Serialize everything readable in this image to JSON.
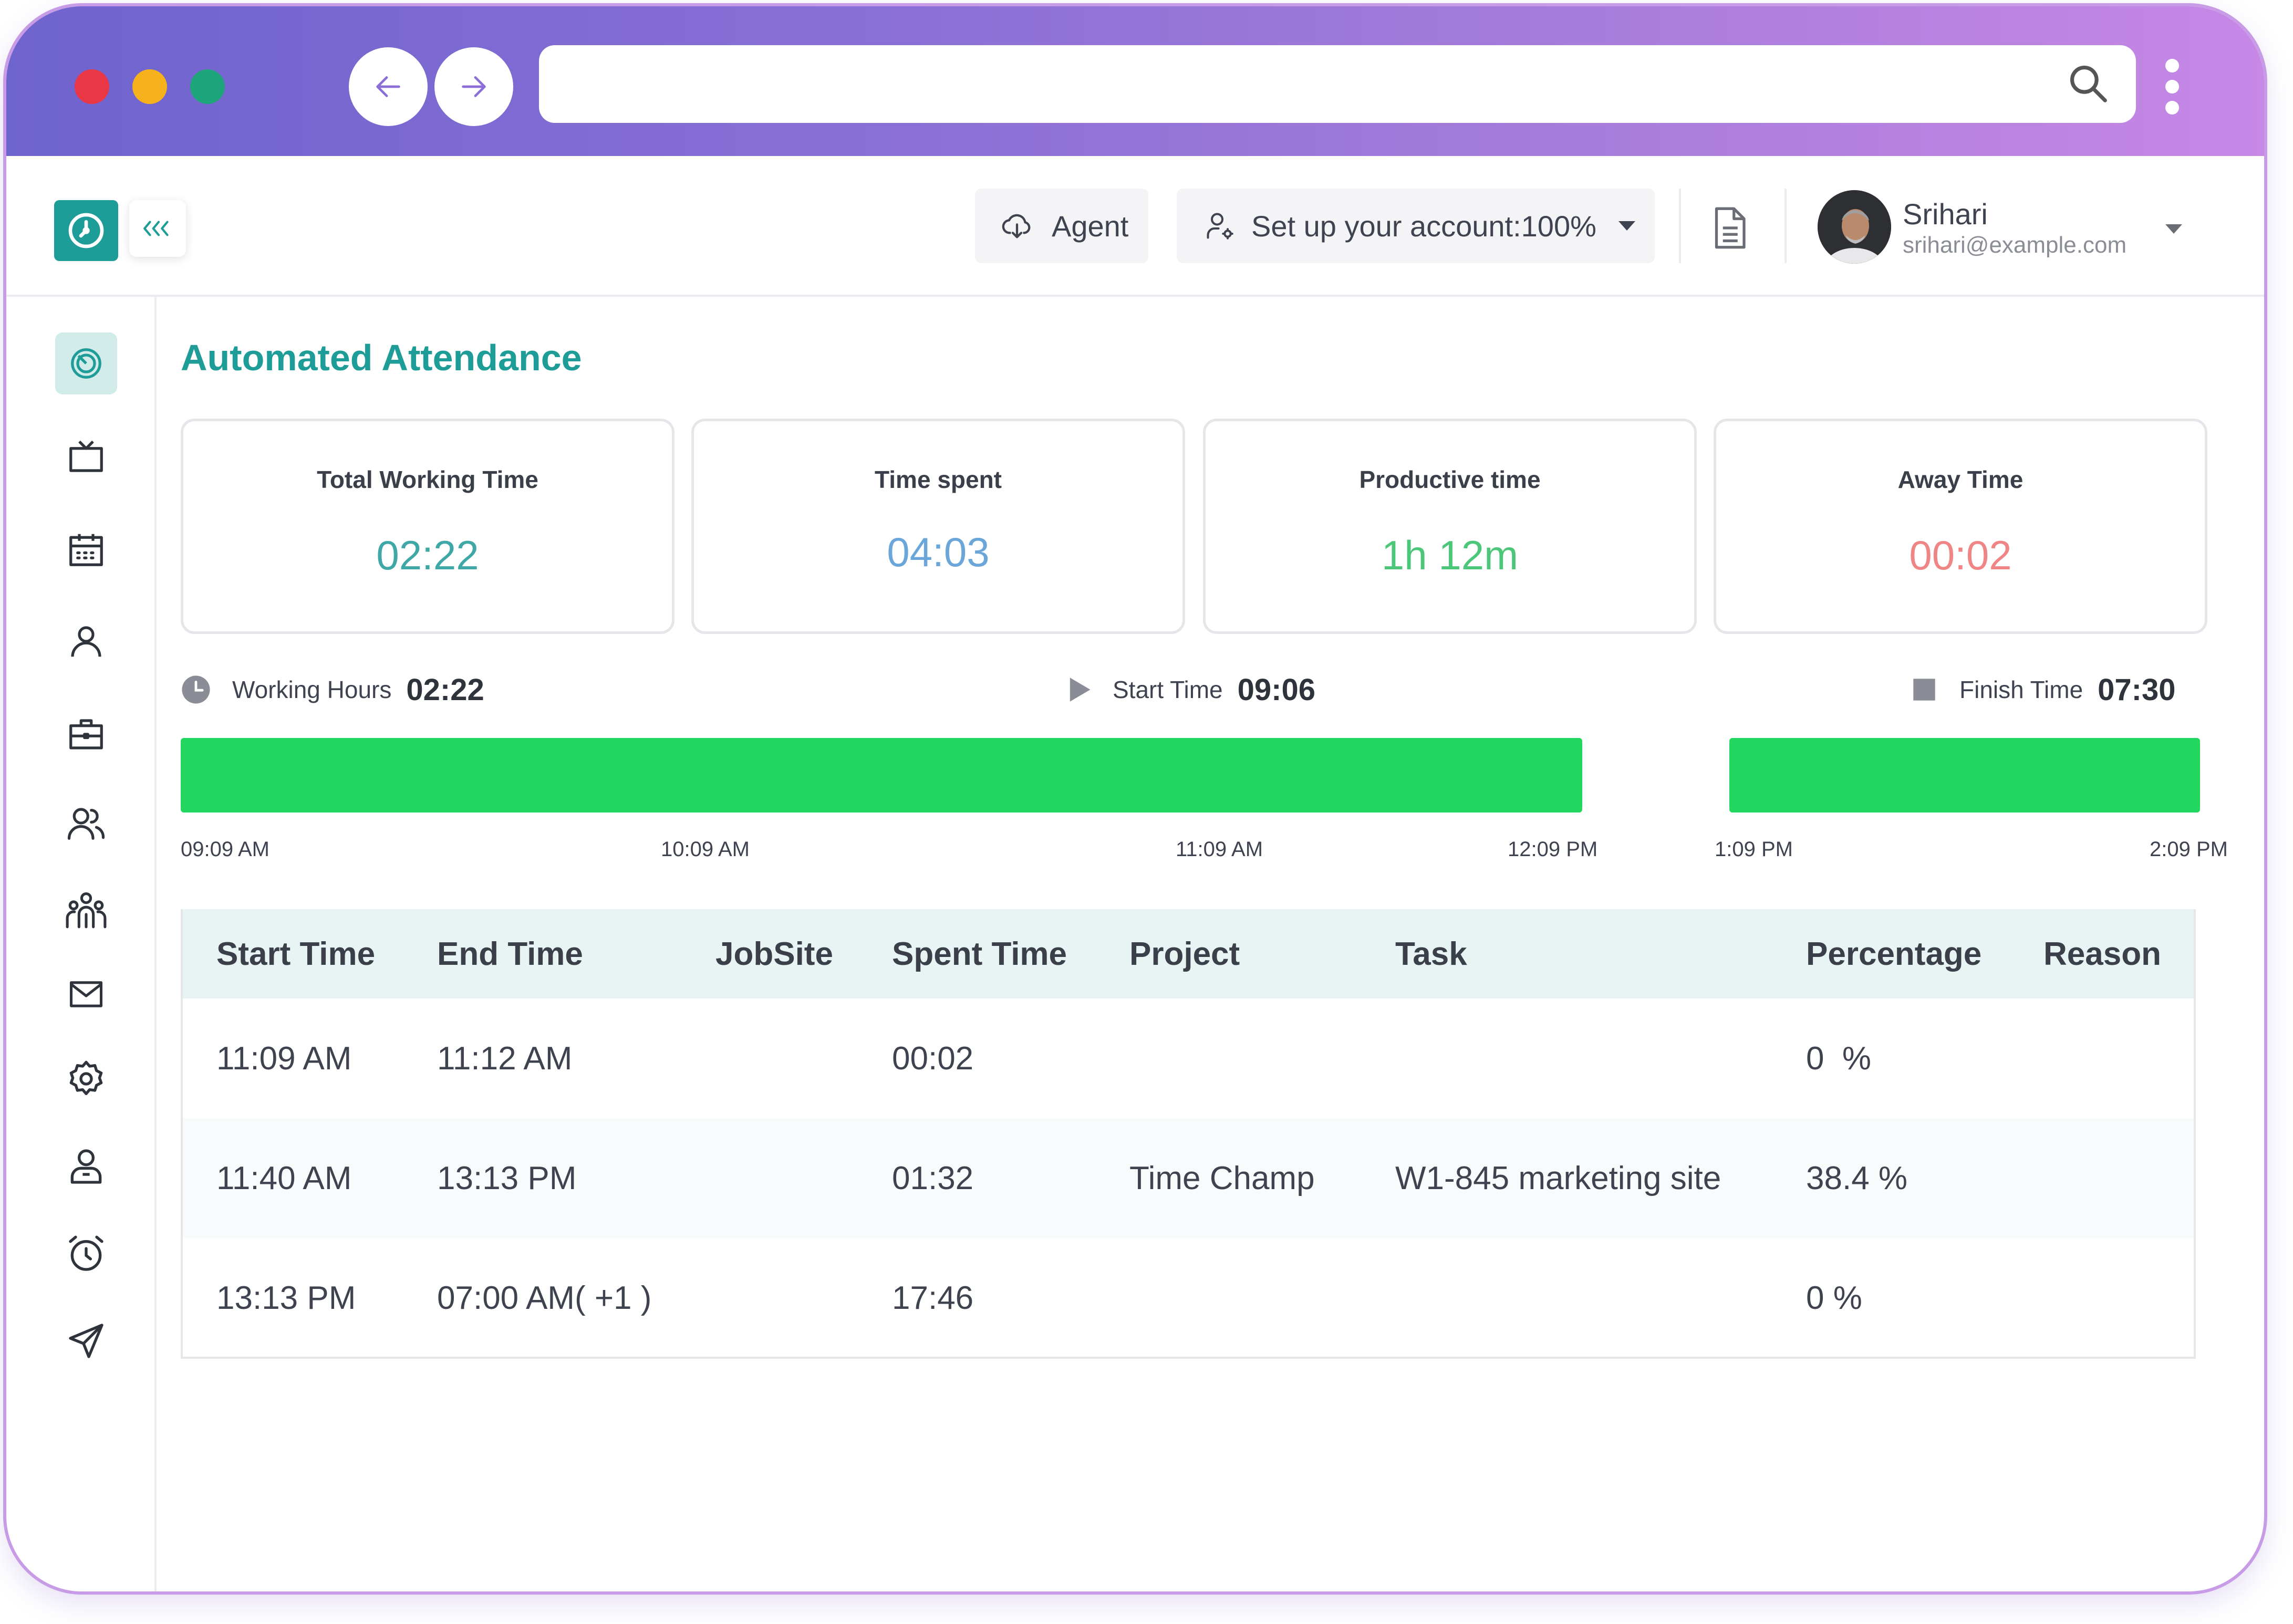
{
  "browser": {
    "url": ""
  },
  "header": {
    "agent_label": "Agent",
    "setup_label": "Set up your account:100%",
    "user_name": "Srihari",
    "user_email": "srihari@example.com"
  },
  "sidebar": {
    "items": [
      "dashboard",
      "monitor",
      "calendar",
      "user",
      "briefcase",
      "users",
      "team",
      "mail",
      "settings",
      "profile",
      "alarm",
      "send"
    ]
  },
  "page": {
    "title": "Automated Attendance"
  },
  "cards": [
    {
      "label": "Total Working Time",
      "value": "02:22",
      "color": "#3fa8a6"
    },
    {
      "label": "Time spent",
      "value": "04:03",
      "color": "#6aa6d9"
    },
    {
      "label": "Productive time",
      "value": "1h 12m",
      "color": "#4cc77a"
    },
    {
      "label": "Away Time",
      "value": "00:02",
      "color": "#ef8585"
    }
  ],
  "stats": {
    "working_hours_label": "Working Hours",
    "working_hours_value": "02:22",
    "start_time_label": "Start Time",
    "start_time_value": "09:06",
    "finish_time_label": "Finish Time",
    "finish_time_value": "07:30"
  },
  "timeline": {
    "ticks": [
      "09:09 AM",
      "10:09 AM",
      "11:09 AM",
      "12:09 PM",
      "1:09 PM",
      "2:09 PM"
    ],
    "color": "#22d660"
  },
  "table": {
    "columns": [
      "Start Time",
      "End Time",
      "JobSite",
      "Spent Time",
      "Project",
      "Task",
      "Percentage",
      "Reason"
    ],
    "rows": [
      {
        "start": "11:09 AM",
        "end": "11:12 AM",
        "jobsite": "",
        "spent": "00:02",
        "project": "",
        "task": "",
        "percentage": "0  %",
        "reason": ""
      },
      {
        "start": "11:40 AM",
        "end": "13:13 PM",
        "jobsite": "",
        "spent": "01:32",
        "project": "Time Champ",
        "task": "W1-845 marketing site",
        "percentage": "38.4 %",
        "reason": ""
      },
      {
        "start": "13:13 PM",
        "end": "07:00 AM( +1 )",
        "jobsite": "",
        "spent": "17:46",
        "project": "",
        "task": "",
        "percentage": "0 %",
        "reason": ""
      }
    ]
  }
}
